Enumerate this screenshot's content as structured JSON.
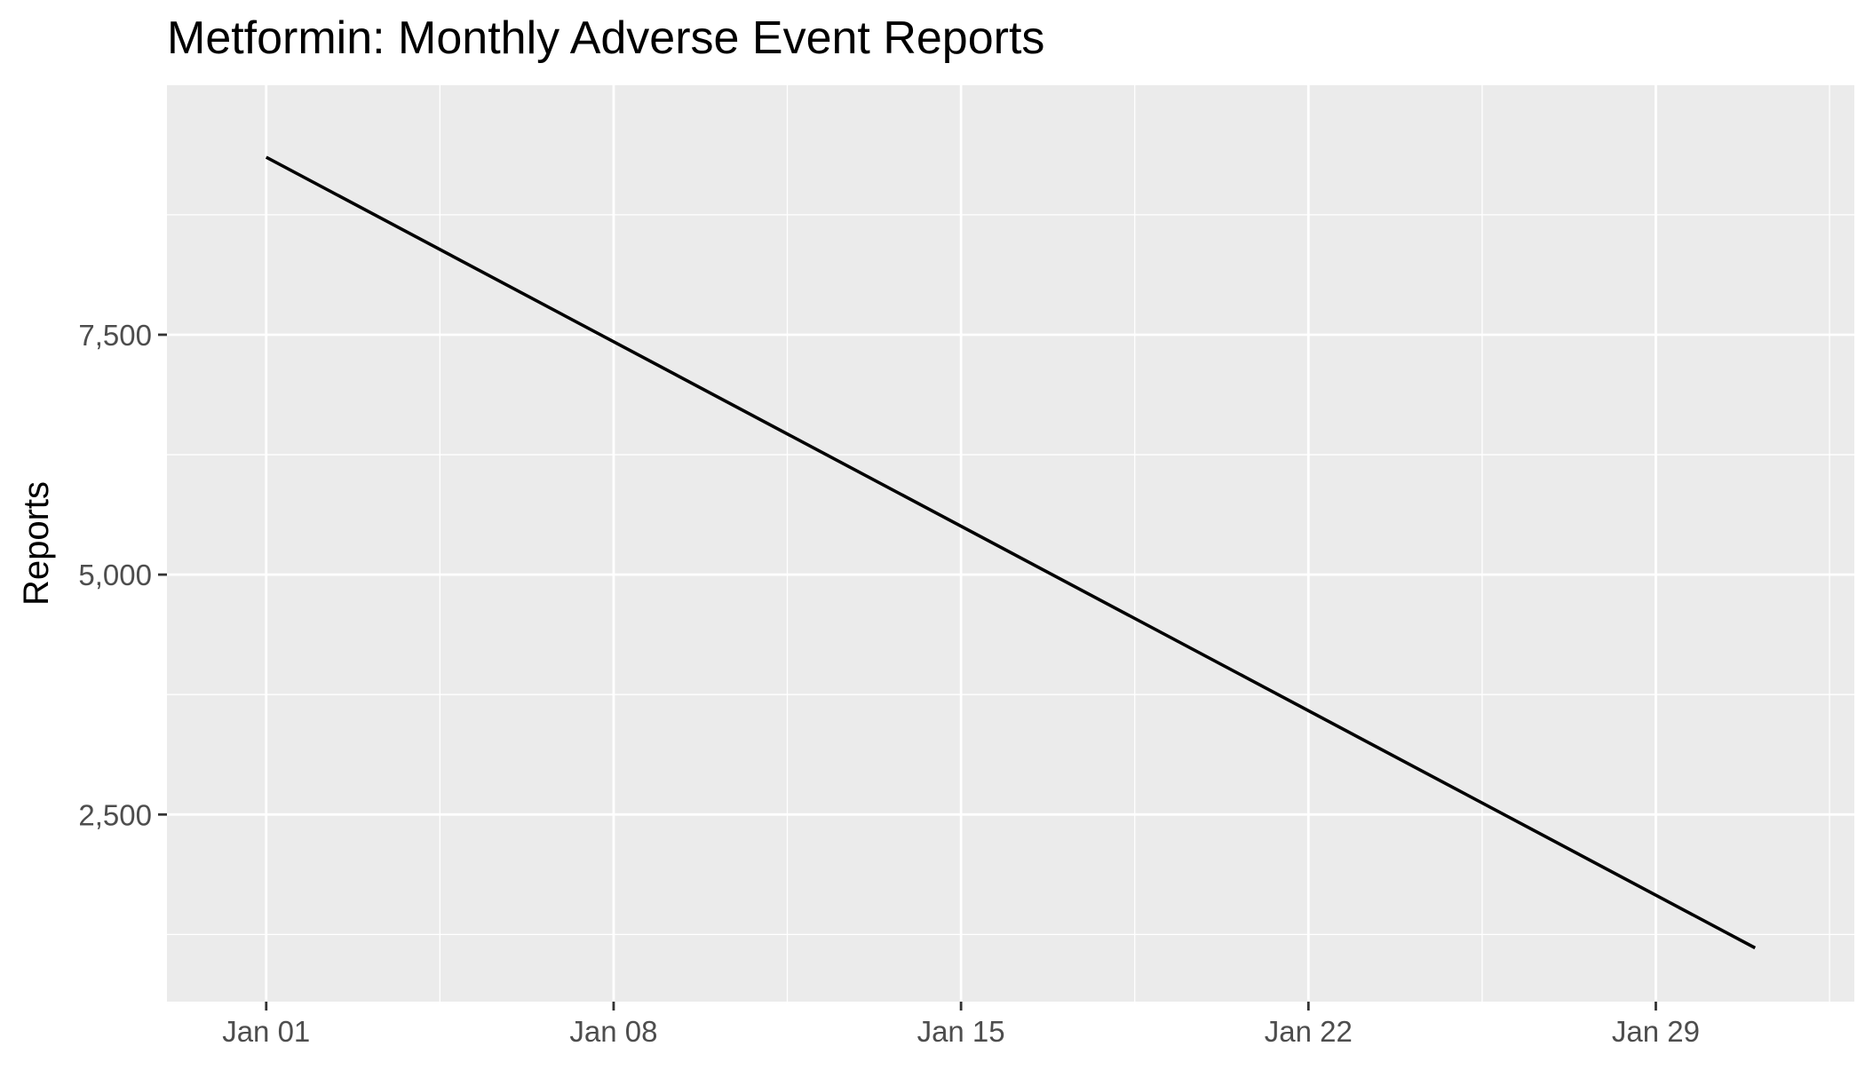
{
  "chart_data": {
    "type": "line",
    "title": "Metformin: Monthly Adverse Event Reports",
    "xlabel": "",
    "ylabel": "Reports",
    "x_type": "date",
    "xlim": [
      "2023-12-30",
      "2024-02-02"
    ],
    "ylim": [
      550,
      10100
    ],
    "x_ticks": [
      {
        "value": "2024-01-01",
        "label": "Jan 01"
      },
      {
        "value": "2024-01-08",
        "label": "Jan 08"
      },
      {
        "value": "2024-01-15",
        "label": "Jan 15"
      },
      {
        "value": "2024-01-22",
        "label": "Jan 22"
      },
      {
        "value": "2024-01-29",
        "label": "Jan 29"
      }
    ],
    "x_minor_ticks": [
      "2024-01-04T12:00",
      "2024-01-11T12:00",
      "2024-01-18T12:00",
      "2024-01-25T12:00",
      "2024-02-01T12:00"
    ],
    "y_ticks": [
      {
        "value": 2500,
        "label": "2,500"
      },
      {
        "value": 5000,
        "label": "5,000"
      },
      {
        "value": 7500,
        "label": "7,500"
      }
    ],
    "y_minor_ticks": [
      1250,
      3750,
      6250,
      8750
    ],
    "grid": true,
    "series": [
      {
        "color": "#000000",
        "points": [
          {
            "x": "2024-01-01",
            "y": 9350
          },
          {
            "x": "2024-01-31",
            "y": 1110
          }
        ]
      }
    ]
  },
  "colors": {
    "panel_background": "#ebebeb",
    "grid": "#ffffff",
    "tick_text": "#4d4d4d",
    "tick_mark": "#333333",
    "line": "#000000"
  }
}
